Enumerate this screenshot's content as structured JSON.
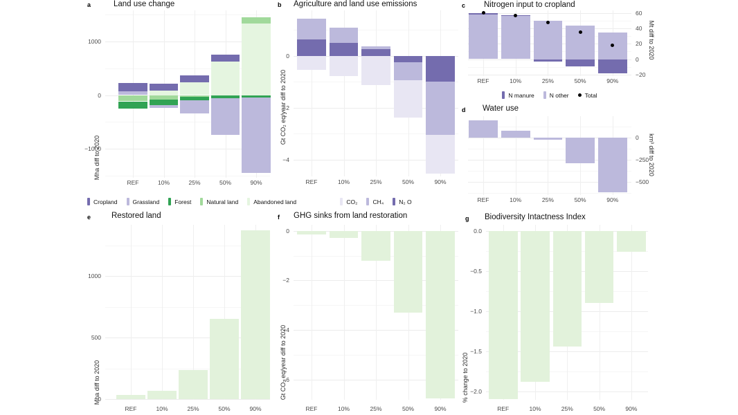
{
  "figure": {
    "background": "#ffffff"
  },
  "colors": {
    "cropland": "#746cae",
    "grassland": "#bcb9dc",
    "forest": "#31a354",
    "natural_land": "#a1d99b",
    "abandoned_land": "#e5f5e0",
    "co2": "#e8e6f3",
    "ch4": "#bcb9dc",
    "n2o": "#746cae",
    "n_manure": "#746cae",
    "n_other": "#bcb9dc",
    "total_dot": "#000000",
    "water": "#bcb9dc",
    "restored": "#e2f2db",
    "grid": "#ececec",
    "text": "#1a1a1a"
  },
  "categories": [
    "REF",
    "10%",
    "25%",
    "50%",
    "90%"
  ],
  "legend_land": {
    "items": [
      {
        "label": "Cropland",
        "color": "cropland",
        "marker": "bar"
      },
      {
        "label": "Grassland",
        "color": "grassland",
        "marker": "bar"
      },
      {
        "label": "Forest",
        "color": "forest",
        "marker": "bar"
      },
      {
        "label": "Natural land",
        "color": "natural_land",
        "marker": "bar"
      },
      {
        "label": "Abandoned land",
        "color": "abandoned_land",
        "marker": "bar"
      }
    ]
  },
  "legend_gas": {
    "items": [
      {
        "label": "CO₂",
        "color": "co2",
        "marker": "bar"
      },
      {
        "label": "CH₄",
        "color": "ch4",
        "marker": "bar"
      },
      {
        "label": "N₂ O",
        "color": "n2o",
        "marker": "bar"
      }
    ]
  },
  "legend_nitrogen": {
    "items": [
      {
        "label": "N manure",
        "color": "n_manure",
        "marker": "bar"
      },
      {
        "label": "N other",
        "color": "n_other",
        "marker": "bar"
      },
      {
        "label": "Total",
        "color": "total_dot",
        "marker": "dot"
      }
    ]
  },
  "chart_data": [
    {
      "id": "a",
      "letter": "a",
      "title": "Land use change",
      "type": "stacked_bar",
      "ylabel": "Mha diff to 2020",
      "ylabel_side": "left",
      "categories": [
        "REF",
        "10%",
        "25%",
        "50%",
        "90%"
      ],
      "ticks": [
        1000,
        0,
        -1000
      ],
      "tick_labels": [
        "1000",
        "0",
        "−1000"
      ],
      "ylim": [
        -1540,
        1580
      ],
      "grid": true,
      "legend_position": "bottom",
      "series": [
        {
          "name": "Abandoned land",
          "color": "abandoned_land",
          "values": [
            0,
            85,
            235,
            630,
            1330
          ]
        },
        {
          "name": "Natural land",
          "color": "natural_land",
          "values": [
            -115,
            -85,
            -30,
            0,
            120
          ]
        },
        {
          "name": "Forest",
          "color": "forest",
          "values": [
            -140,
            -105,
            -60,
            -60,
            -45
          ]
        },
        {
          "name": "Grassland",
          "color": "grassland",
          "values": [
            75,
            -45,
            -245,
            -680,
            -1400
          ]
        },
        {
          "name": "Cropland",
          "color": "cropland",
          "values": [
            150,
            130,
            140,
            120,
            0
          ]
        }
      ]
    },
    {
      "id": "b",
      "letter": "b",
      "title": "Agriculture and land use emissions",
      "type": "stacked_bar",
      "ylabel": "Gt CO₂ eq/year diff to 2020",
      "ylabel_side": "left",
      "categories": [
        "REF",
        "10%",
        "25%",
        "50%",
        "90%"
      ],
      "ticks": [
        0,
        -2,
        -4
      ],
      "tick_labels": [
        "0",
        "−2",
        "−4"
      ],
      "ylim": [
        -4.65,
        1.75
      ],
      "grid": true,
      "legend_position": "bottom",
      "series": [
        {
          "name": "N₂ O",
          "color": "n2o",
          "values": [
            0.62,
            0.49,
            0.25,
            -0.24,
            -1.0
          ]
        },
        {
          "name": "CH₄",
          "color": "ch4",
          "values": [
            0.8,
            0.59,
            0.12,
            -0.7,
            -2.05
          ]
        },
        {
          "name": "CO₂",
          "color": "co2",
          "values": [
            -0.55,
            -0.78,
            -1.12,
            -1.44,
            -1.5
          ]
        }
      ]
    },
    {
      "id": "c",
      "letter": "c",
      "title": "Nitrogen input to cropland",
      "type": "stacked_bar",
      "ylabel": "Mt diff to 2020",
      "ylabel_side": "right",
      "categories": [
        "REF",
        "10%",
        "25%",
        "50%",
        "90%"
      ],
      "ticks": [
        60,
        40,
        20,
        0,
        -20
      ],
      "tick_labels": [
        "60",
        "40",
        "20",
        "0",
        "−20"
      ],
      "ylim": [
        -22,
        63.5
      ],
      "grid": true,
      "legend_position": "bottom",
      "series": [
        {
          "name": "N other",
          "color": "n_other",
          "values": [
            58,
            56,
            50,
            44,
            35
          ]
        },
        {
          "name": "N manure",
          "color": "n_manure",
          "values": [
            2,
            1,
            -3,
            -9,
            -18
          ]
        }
      ],
      "dots": {
        "name": "Total",
        "color": "total_dot",
        "values": [
          60,
          57,
          48,
          35,
          18
        ]
      }
    },
    {
      "id": "d",
      "letter": "d",
      "title": "Water use",
      "type": "bar",
      "ylabel": "km³ diff to 2020",
      "ylabel_side": "right",
      "categories": [
        "REF",
        "10%",
        "25%",
        "50%",
        "90%"
      ],
      "ticks": [
        0,
        -250,
        -500
      ],
      "tick_labels": [
        "0",
        "−250",
        "−500"
      ],
      "ylim": [
        -648,
        242
      ],
      "grid": true,
      "bar_color": "water",
      "values": [
        195,
        80,
        -25,
        -290,
        -615
      ]
    },
    {
      "id": "e",
      "letter": "e",
      "title": "Restored land",
      "type": "bar",
      "ylabel": "Mha diff to 2020",
      "ylabel_side": "left",
      "categories": [
        "REF",
        "10%",
        "25%",
        "50%",
        "90%"
      ],
      "ticks": [
        1000,
        500,
        0
      ],
      "tick_labels": [
        "1000",
        "500",
        "0"
      ],
      "ylim": [
        -6,
        1416
      ],
      "grid": true,
      "bar_color": "restored",
      "values": [
        35,
        70,
        235,
        650,
        1370
      ]
    },
    {
      "id": "f",
      "letter": "f",
      "title": "GHG sinks from land restoration",
      "type": "bar",
      "ylabel": "Gt CO₂ eq/year diff to 2020",
      "ylabel_side": "left",
      "categories": [
        "REF",
        "10%",
        "25%",
        "50%",
        "90%"
      ],
      "ticks": [
        0,
        -2,
        -4,
        -6
      ],
      "tick_labels": [
        "0",
        "−2",
        "−4",
        "−6"
      ],
      "ylim": [
        -6.81,
        0.24
      ],
      "grid": true,
      "bar_color": "restored",
      "values": [
        -0.16,
        -0.28,
        -1.2,
        -3.3,
        -6.75
      ]
    },
    {
      "id": "g",
      "letter": "g",
      "title": "Biodiversity Intactness Index",
      "type": "bar",
      "ylabel": "% change to 2020",
      "ylabel_side": "left",
      "categories": [
        "REF",
        "10%",
        "25%",
        "50%",
        "90%"
      ],
      "ticks": [
        0,
        -0.5,
        -1.0,
        -1.5,
        -2.0
      ],
      "tick_labels": [
        "0.0",
        "−0.5",
        "−1.0",
        "−1.5",
        "−2.0"
      ],
      "ylim": [
        -2.1,
        0.08
      ],
      "grid": true,
      "bar_color": "restored",
      "values": [
        -2.09,
        -1.88,
        -1.44,
        -0.89,
        -0.26
      ]
    }
  ]
}
